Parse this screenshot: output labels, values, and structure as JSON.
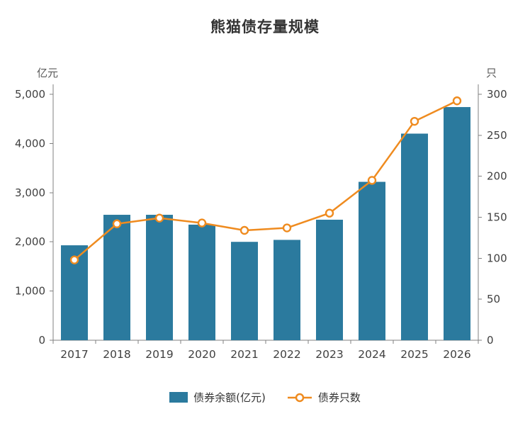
{
  "colors": {
    "bar": "#2b7a9e",
    "line": "#ef8b1f",
    "marker_fill": "#ffffff",
    "axis_text": "#404040",
    "axis_line": "#808080",
    "title_text": "#333333"
  },
  "chart_data": {
    "type": "bar+line combo",
    "title": "熊猫债存量规模",
    "categories": [
      "2017",
      "2018",
      "2019",
      "2020",
      "2021",
      "2022",
      "2023",
      "2024",
      "2025",
      "2026"
    ],
    "series": [
      {
        "name": "债券余额(亿元)",
        "type": "bar",
        "axis": "left",
        "values": [
          1930,
          2550,
          2550,
          2350,
          2000,
          2040,
          2450,
          3220,
          4200,
          4740
        ]
      },
      {
        "name": "债券只数",
        "type": "line",
        "axis": "right",
        "values": [
          98,
          142,
          149,
          143,
          134,
          137,
          155,
          195,
          267,
          292
        ]
      }
    ],
    "left_axis": {
      "label": "亿元",
      "min": 0,
      "max": 5000,
      "step": 1000
    },
    "right_axis": {
      "label": "只",
      "min": 0,
      "max": 300,
      "step": 50
    },
    "grid": false,
    "legend_position": "bottom"
  }
}
